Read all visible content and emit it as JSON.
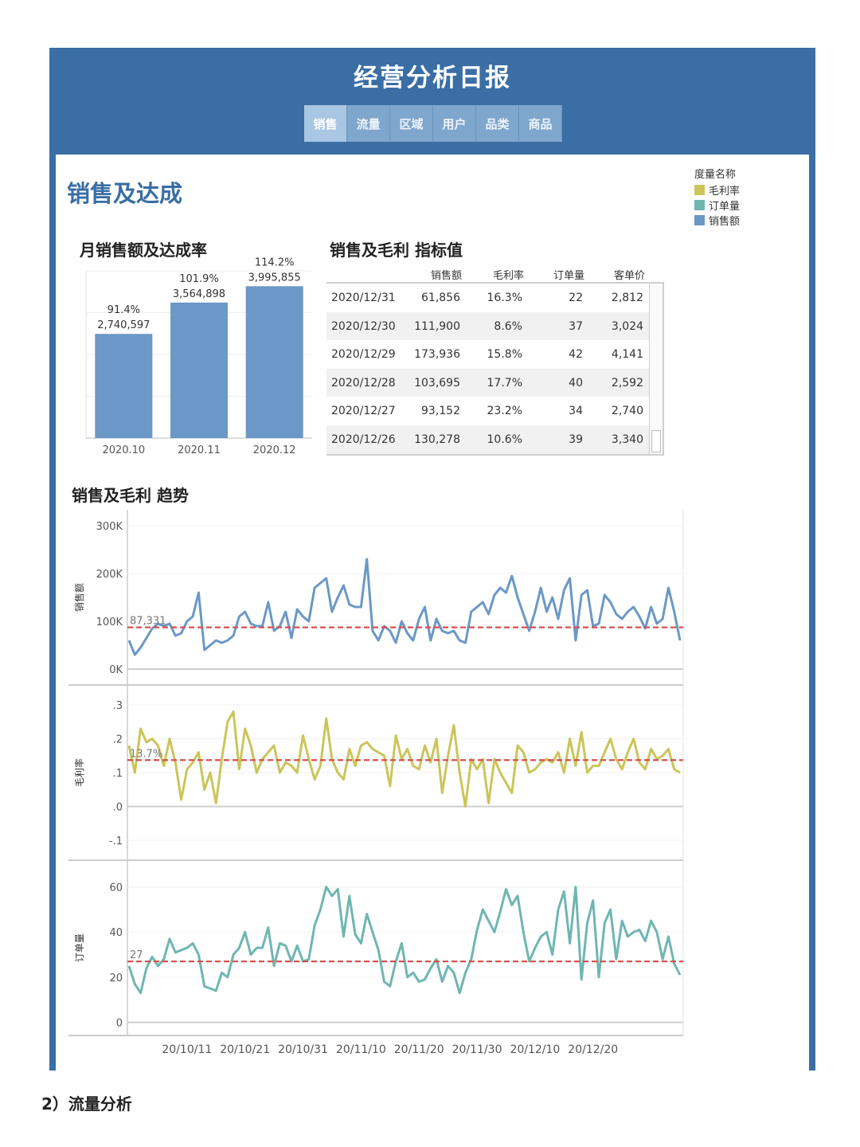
{
  "header": {
    "title": "经营分析日报",
    "tabs": [
      "销售",
      "流量",
      "区域",
      "用户",
      "品类",
      "商品"
    ]
  },
  "section_title": "销售及达成",
  "legend": {
    "title": "度量名称",
    "items": [
      {
        "label": "毛利率",
        "color": "#cbc55a"
      },
      {
        "label": "订单量",
        "color": "#6fb6b1"
      },
      {
        "label": "销售额",
        "color": "#6b98c6"
      }
    ]
  },
  "monthly": {
    "title": "月销售额及达成率"
  },
  "table": {
    "title": "销售及毛利 指标值",
    "columns": [
      "销售额",
      "毛利率",
      "订单量",
      "客单价"
    ],
    "rows": [
      {
        "date": "2020/12/31",
        "sales": "61,856",
        "margin": "16.3%",
        "orders": "22",
        "aov": "2,812"
      },
      {
        "date": "2020/12/30",
        "sales": "111,900",
        "margin": "8.6%",
        "orders": "37",
        "aov": "3,024"
      },
      {
        "date": "2020/12/29",
        "sales": "173,936",
        "margin": "15.8%",
        "orders": "42",
        "aov": "4,141"
      },
      {
        "date": "2020/12/28",
        "sales": "103,695",
        "margin": "17.7%",
        "orders": "40",
        "aov": "2,592"
      },
      {
        "date": "2020/12/27",
        "sales": "93,152",
        "margin": "23.2%",
        "orders": "34",
        "aov": "2,740"
      },
      {
        "date": "2020/12/26",
        "sales": "130,278",
        "margin": "10.6%",
        "orders": "39",
        "aov": "3,340"
      }
    ]
  },
  "trend": {
    "title": "销售及毛利 趋势"
  },
  "footer": {
    "text": "2）流量分析"
  },
  "chart_data": [
    {
      "type": "bar",
      "title": "月销售额及达成率",
      "categories": [
        "2020.10",
        "2020.11",
        "2020.12"
      ],
      "values": [
        2740597,
        3564898,
        3995855
      ],
      "value_labels": [
        "2,740,597",
        "3,564,898",
        "3,995,855"
      ],
      "rate_labels": [
        "91.4%",
        "101.9%",
        "114.2%"
      ],
      "ylim": [
        0,
        4400000
      ],
      "color": "#6b98c6"
    },
    {
      "type": "line",
      "title": "销售及毛利 趋势",
      "x_start": "2020/10/01",
      "x_ticks": [
        "20/10/11",
        "20/10/21",
        "20/10/31",
        "20/11/10",
        "20/11/20",
        "20/11/30",
        "20/12/10",
        "20/12/20"
      ],
      "series": [
        {
          "name": "销售额",
          "ylabel": "销售额",
          "color": "#6b98c6",
          "ylim": [
            -20000,
            320000
          ],
          "yticks": [
            0,
            100000,
            200000,
            300000
          ],
          "ytick_labels": [
            "0K",
            "100K",
            "200K",
            "300K"
          ],
          "reference_value": 87331,
          "reference_label": "87,331",
          "values": [
            60000,
            30000,
            45000,
            65000,
            85000,
            95000,
            90000,
            95000,
            70000,
            75000,
            100000,
            110000,
            160000,
            40000,
            50000,
            60000,
            55000,
            60000,
            70000,
            110000,
            120000,
            95000,
            90000,
            90000,
            140000,
            80000,
            90000,
            120000,
            65000,
            125000,
            110000,
            100000,
            170000,
            180000,
            190000,
            120000,
            150000,
            175000,
            135000,
            130000,
            130000,
            230000,
            80000,
            60000,
            90000,
            80000,
            55000,
            100000,
            75000,
            60000,
            105000,
            130000,
            60000,
            105000,
            80000,
            75000,
            80000,
            60000,
            55000,
            120000,
            130000,
            140000,
            115000,
            155000,
            170000,
            160000,
            195000,
            150000,
            115000,
            80000,
            120000,
            170000,
            120000,
            150000,
            105000,
            165000,
            190000,
            60000,
            155000,
            165000,
            90000,
            95000,
            155000,
            140000,
            115000,
            105000,
            120000,
            130000,
            110000,
            85000,
            130000,
            95000,
            105000,
            170000,
            120000,
            60000
          ]
        },
        {
          "name": "毛利率",
          "ylabel": "毛利率",
          "color": "#cbc55a",
          "ylim": [
            -0.14,
            0.34
          ],
          "yticks": [
            -0.1,
            0.0,
            0.1,
            0.2,
            0.3
          ],
          "ytick_labels": [
            "-.1",
            ".0",
            ".1",
            ".2",
            ".3"
          ],
          "reference_value": 0.137,
          "reference_label": "13.7%",
          "values": [
            0.18,
            0.1,
            0.23,
            0.19,
            0.2,
            0.18,
            0.12,
            0.2,
            0.13,
            0.02,
            0.11,
            0.13,
            0.16,
            0.05,
            0.1,
            0.01,
            0.14,
            0.25,
            0.28,
            0.11,
            0.23,
            0.18,
            0.1,
            0.14,
            0.16,
            0.18,
            0.1,
            0.13,
            0.12,
            0.1,
            0.21,
            0.14,
            0.08,
            0.12,
            0.26,
            0.14,
            0.1,
            0.08,
            0.17,
            0.12,
            0.18,
            0.19,
            0.17,
            0.16,
            0.15,
            0.06,
            0.21,
            0.14,
            0.17,
            0.12,
            0.11,
            0.18,
            0.13,
            0.2,
            0.04,
            0.15,
            0.24,
            0.1,
            0.0,
            0.14,
            0.11,
            0.14,
            0.01,
            0.14,
            0.1,
            0.07,
            0.04,
            0.18,
            0.16,
            0.1,
            0.11,
            0.13,
            0.14,
            0.13,
            0.16,
            0.1,
            0.2,
            0.12,
            0.22,
            0.1,
            0.12,
            0.12,
            0.16,
            0.2,
            0.14,
            0.11,
            0.16,
            0.2,
            0.13,
            0.11,
            0.17,
            0.14,
            0.15,
            0.17,
            0.11,
            0.1
          ]
        },
        {
          "name": "订单量",
          "ylabel": "订单量",
          "color": "#6fb6b1",
          "ylim": [
            -3,
            69
          ],
          "yticks": [
            0,
            20,
            40,
            60
          ],
          "ytick_labels": [
            "0",
            "20",
            "40",
            "60"
          ],
          "reference_value": 27,
          "reference_label": "27",
          "values": [
            25,
            17,
            13,
            24,
            29,
            25,
            28,
            37,
            31,
            32,
            33,
            35,
            30,
            16,
            15,
            14,
            22,
            20,
            30,
            33,
            40,
            30,
            33,
            33,
            42,
            25,
            35,
            34,
            27,
            34,
            27,
            28,
            43,
            50,
            60,
            56,
            59,
            38,
            56,
            39,
            35,
            48,
            40,
            32,
            18,
            16,
            27,
            35,
            20,
            22,
            18,
            19,
            24,
            28,
            18,
            25,
            22,
            13,
            22,
            28,
            41,
            50,
            45,
            40,
            49,
            59,
            52,
            56,
            40,
            27,
            33,
            38,
            40,
            30,
            50,
            58,
            35,
            60,
            19,
            44,
            54,
            20,
            44,
            50,
            28,
            45,
            38,
            40,
            41,
            36,
            45,
            40,
            28,
            38,
            26,
            21
          ]
        }
      ]
    }
  ]
}
